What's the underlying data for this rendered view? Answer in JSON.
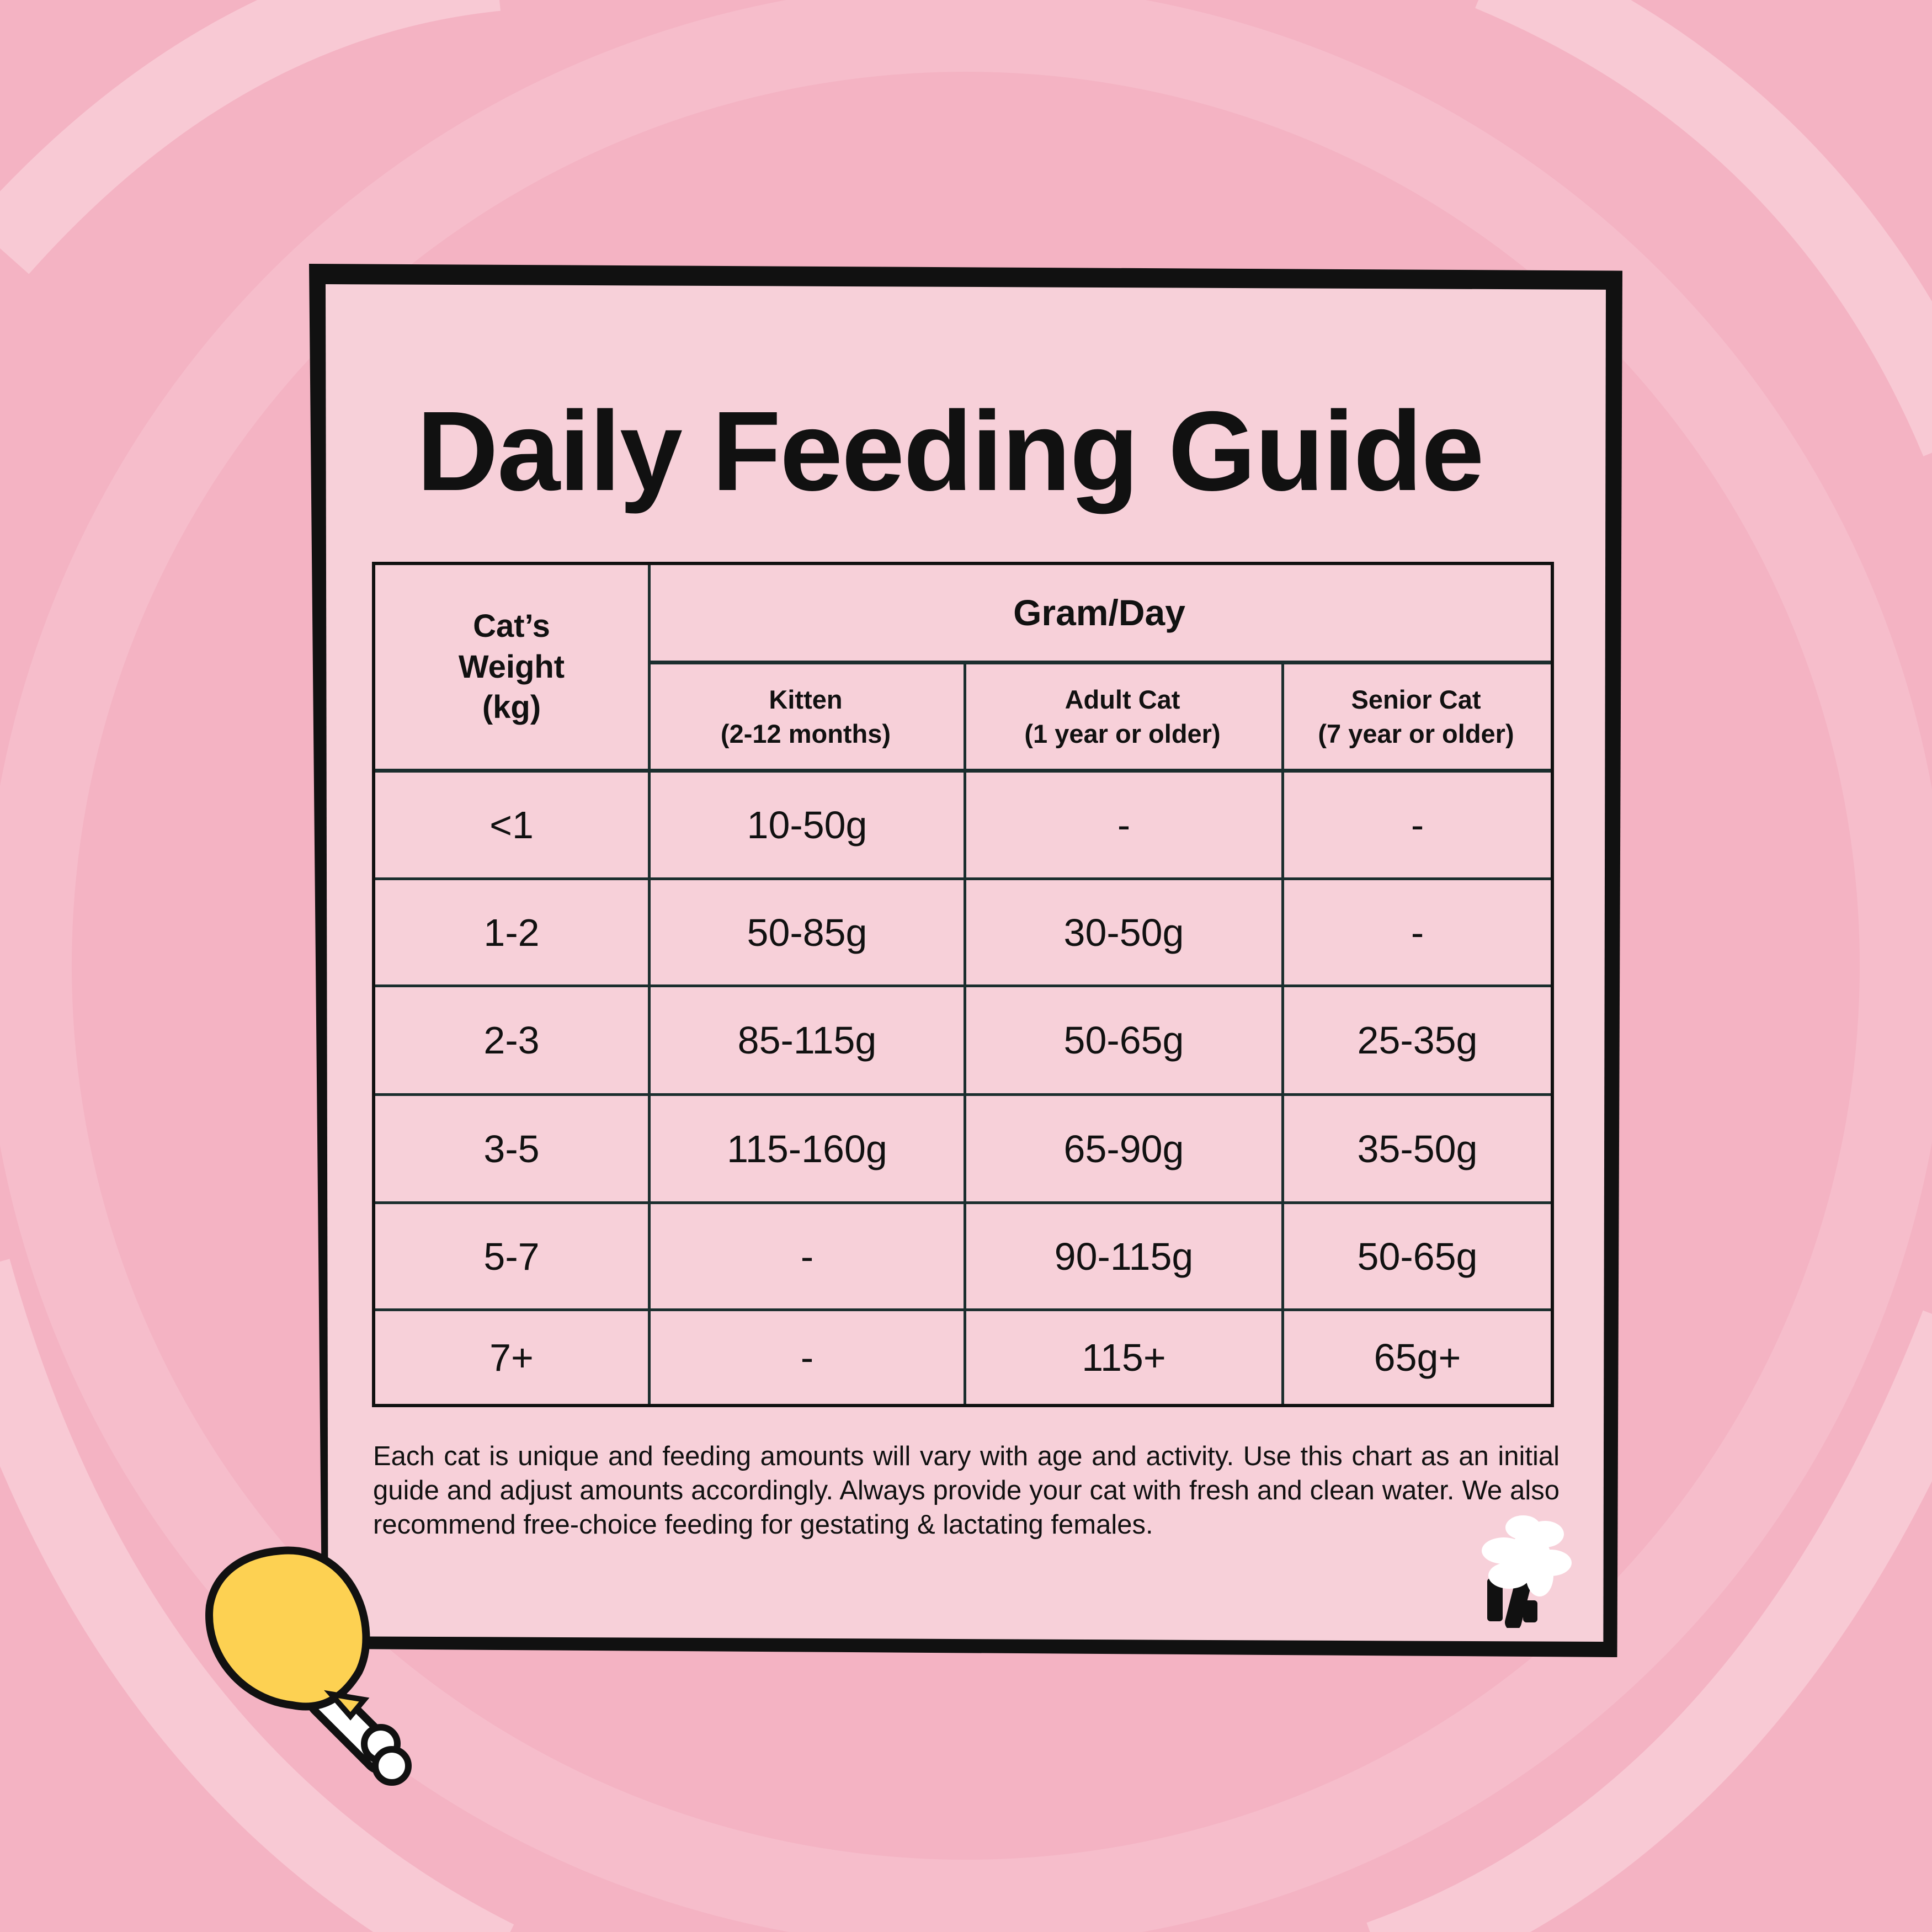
{
  "title": "Daily Feeding Guide",
  "table": {
    "weight_header": [
      "Cat’s",
      "Weight",
      "(kg)"
    ],
    "group_header": "Gram/Day",
    "columns": [
      {
        "name": "Kitten",
        "sub": "(2-12 months)"
      },
      {
        "name": "Adult Cat",
        "sub": "(1 year or older)"
      },
      {
        "name": "Senior Cat",
        "sub": "(7 year or older)"
      }
    ],
    "rows": [
      [
        "<1",
        "10-50g",
        "-",
        "-"
      ],
      [
        "1-2",
        "50-85g",
        "30-50g",
        "-"
      ],
      [
        "2-3",
        "85-115g",
        "50-65g",
        "25-35g"
      ],
      [
        "3-5",
        "115-160g",
        "65-90g",
        "35-50g"
      ],
      [
        "5-7",
        "-",
        "90-115g",
        "50-65g"
      ],
      [
        "7+",
        "-",
        "115+",
        "65g+"
      ]
    ]
  },
  "note": "Each cat is unique and feeding amounts will vary with age and activity. Use this chart as an initial guide and adjust amounts accordingly. Always provide your cat with fresh and clean water. We also recommend free-choice feeding for gestating & lactating females.",
  "colors": {
    "background": "#f4b3c3",
    "card": "#f7d0d9",
    "drumstick": "#fdd152"
  }
}
